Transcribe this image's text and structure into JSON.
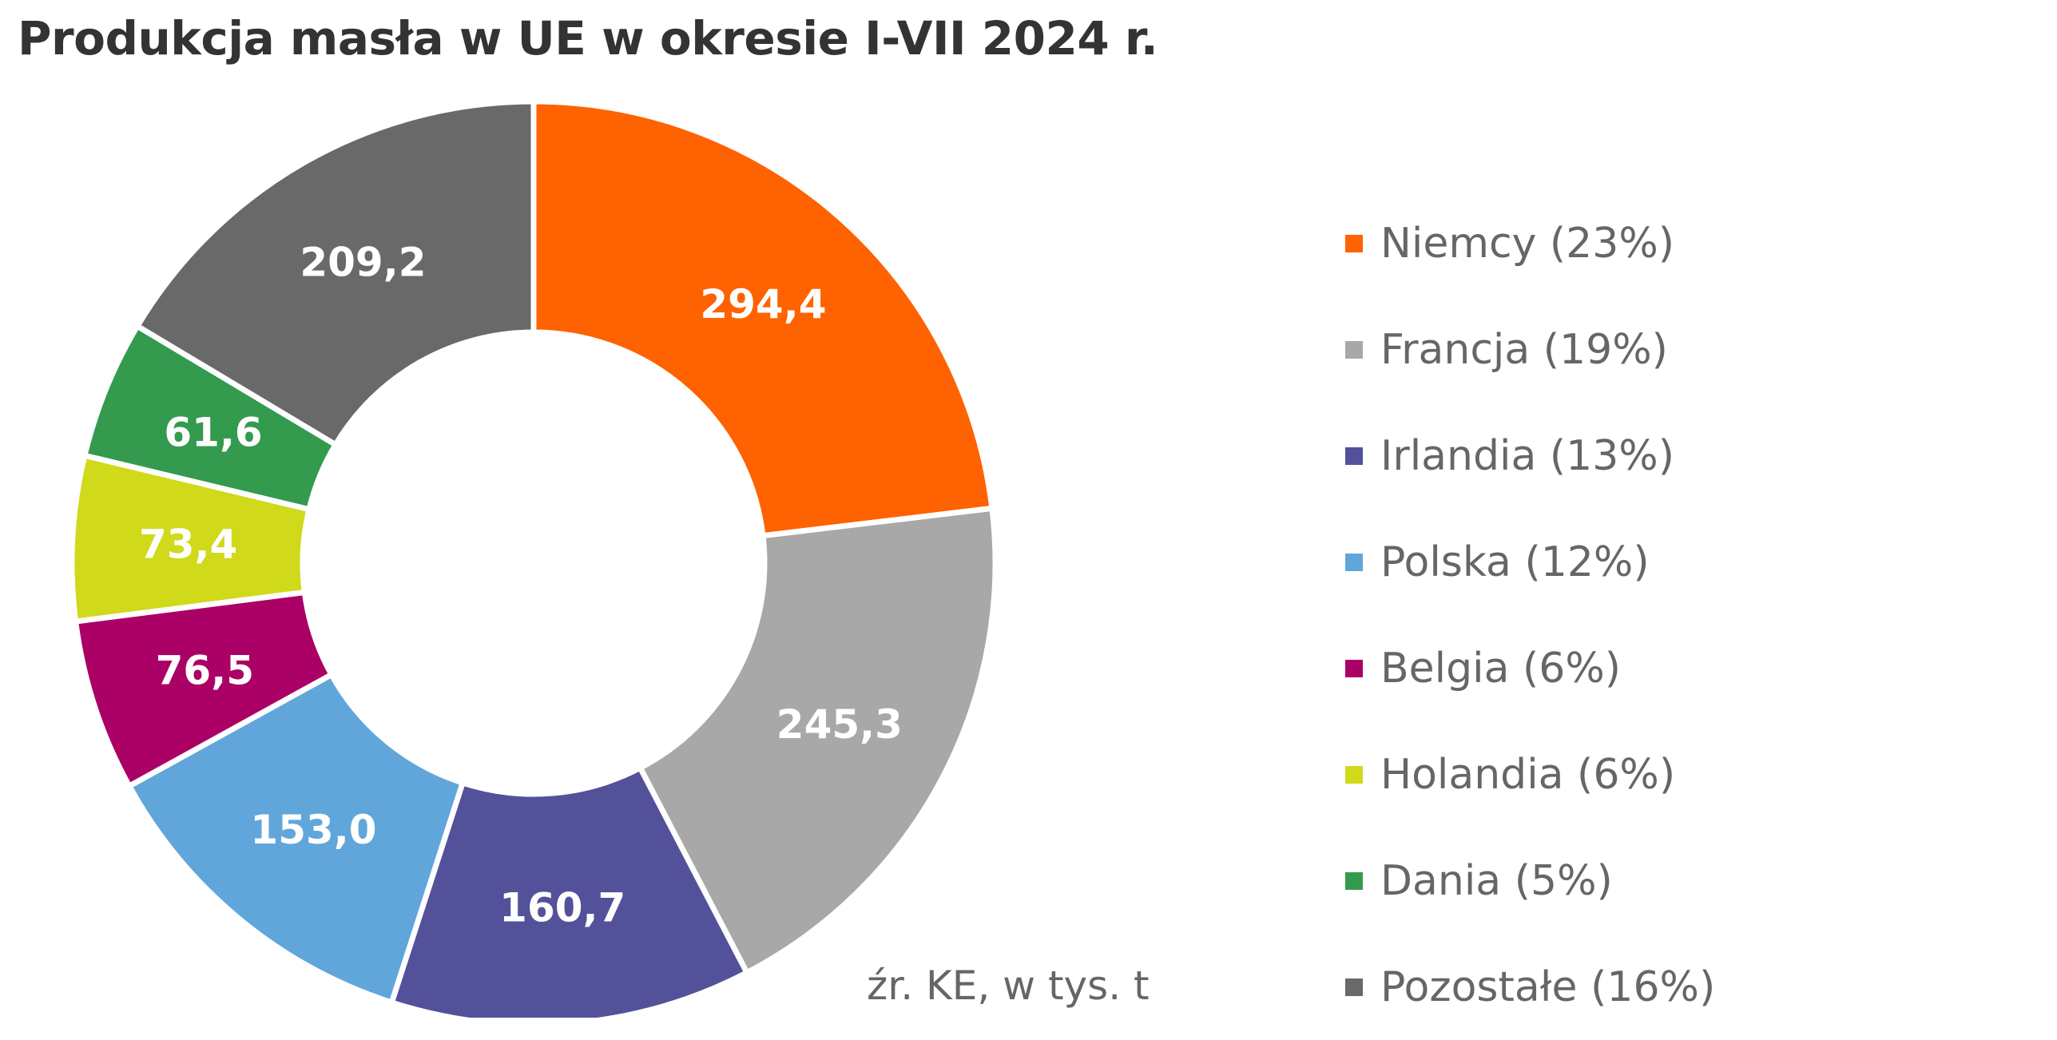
{
  "title": "Produkcja masła w UE w okresie I-VII 2024 r.",
  "source_note": "źr. KE, w tys. t",
  "chart_data": {
    "type": "pie",
    "style": "donut",
    "title": "Produkcja masła w UE w okresie I-VII 2024 r.",
    "categories": [
      "Niemcy",
      "Francja",
      "Irlandia",
      "Polska",
      "Belgia",
      "Holandia",
      "Dania",
      "Pozostałe"
    ],
    "values": [
      294.4,
      245.3,
      160.7,
      153.0,
      76.5,
      73.4,
      61.6,
      209.2
    ],
    "value_labels": [
      "294,4",
      "245,3",
      "160,7",
      "153,0",
      "76,5",
      "73,4",
      "61,6",
      "209,2"
    ],
    "legend_labels": [
      "Niemcy (23%)",
      "Francja (19%)",
      "Irlandia (13%)",
      "Polska (12%)",
      "Belgia (6%)",
      "Holandia (6%)",
      "Dania (5%)",
      "Pozostałe (16%)"
    ],
    "percentages": [
      23,
      19,
      13,
      12,
      6,
      6,
      5,
      16
    ],
    "colors": [
      "#FF6200",
      "#A8A8A8",
      "#525199",
      "#60A6DA",
      "#AB0066",
      "#D0D91A",
      "#349A4E",
      "#696969"
    ],
    "unit": "w tys. t",
    "start_angle": "12 o'clock",
    "direction": "clockwise",
    "legend_position": "right"
  }
}
